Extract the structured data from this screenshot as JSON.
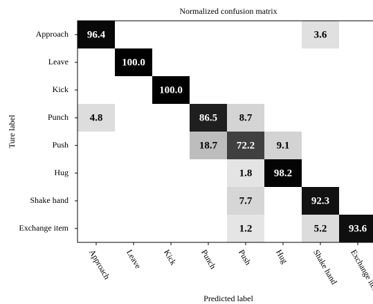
{
  "chart_data": {
    "type": "heatmap",
    "title": "Normalized confusion matrix",
    "x_label": "Predicted label",
    "y_label": "Ture label",
    "x_categories": [
      "Approach",
      "Leave",
      "Kick",
      "Punch",
      "Push",
      "Hug",
      "Shake hand",
      "Exchange item"
    ],
    "y_categories": [
      "Approach",
      "Leave",
      "Kick",
      "Punch",
      "Push",
      "Hug",
      "Shake hand",
      "Exchange item"
    ],
    "values": [
      [
        96.4,
        null,
        null,
        null,
        null,
        null,
        3.6,
        null
      ],
      [
        null,
        100,
        null,
        null,
        null,
        null,
        null,
        null
      ],
      [
        null,
        null,
        100,
        null,
        null,
        null,
        null,
        null
      ],
      [
        4.8,
        null,
        null,
        86.5,
        8.7,
        null,
        null,
        null
      ],
      [
        null,
        null,
        null,
        18.7,
        72.2,
        9.1,
        null,
        null
      ],
      [
        null,
        null,
        null,
        null,
        1.8,
        98.2,
        null,
        null
      ],
      [
        null,
        null,
        null,
        null,
        7.7,
        null,
        92.3,
        null
      ],
      [
        null,
        null,
        null,
        null,
        1.2,
        null,
        5.2,
        93.6
      ]
    ],
    "value_labels": [
      [
        "96.4",
        null,
        null,
        null,
        null,
        null,
        "3.6",
        null
      ],
      [
        null,
        "100.0",
        null,
        null,
        null,
        null,
        null,
        null
      ],
      [
        null,
        null,
        "100.0",
        null,
        null,
        null,
        null,
        null
      ],
      [
        "4.8",
        null,
        null,
        "86.5",
        "8.7",
        null,
        null,
        null
      ],
      [
        null,
        null,
        null,
        "18.7",
        "72.2",
        "9.1",
        null,
        null
      ],
      [
        null,
        null,
        null,
        null,
        "1.8",
        "98.2",
        null,
        null
      ],
      [
        null,
        null,
        null,
        null,
        "7.7",
        null,
        "92.3",
        null
      ],
      [
        null,
        null,
        null,
        null,
        "1.2",
        null,
        "5.2",
        "93.6"
      ]
    ],
    "colormap": "gray_r",
    "vlim": [
      0,
      100
    ]
  }
}
